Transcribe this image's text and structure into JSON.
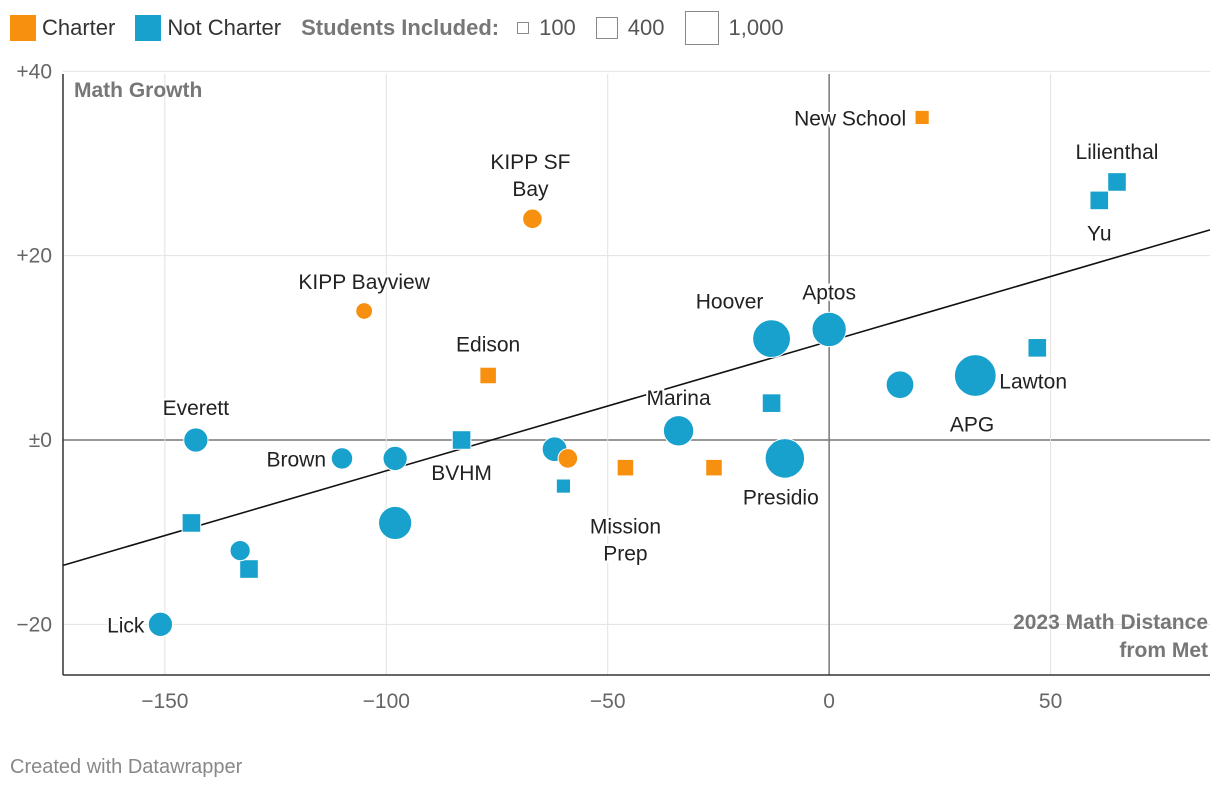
{
  "legend": {
    "charter_label": "Charter",
    "not_charter_label": "Not Charter",
    "size_title": "Students Included:",
    "size_100": "100",
    "size_400": "400",
    "size_1000": "1,000"
  },
  "colors": {
    "charter": "#f7900e",
    "not_charter": "#18a1cd",
    "trend": "#111111",
    "grid": "#e2e2e2",
    "zero": "#777777"
  },
  "footer": {
    "credit": "Created with Datawrapper"
  },
  "chart_data": {
    "type": "scatter",
    "title": "",
    "ylabel": "Math Growth",
    "xlabel": "2023 Math Distance from Met",
    "xlim": [
      -173,
      86
    ],
    "ylim": [
      -25.5,
      40.8
    ],
    "xticks": [
      -150,
      -100,
      -50,
      0,
      50
    ],
    "xtick_labels": [
      "−150",
      "−100",
      "−50",
      "0",
      "50"
    ],
    "yticks": [
      40,
      20,
      0,
      -20
    ],
    "ytick_labels": [
      "+40",
      "+20",
      "±0",
      "−20"
    ],
    "trendline": {
      "x": [
        -173,
        86
      ],
      "y": [
        -13.6,
        22.8
      ]
    },
    "points": [
      {
        "label": "New School",
        "x": 21,
        "y": 35,
        "charter": true,
        "shape": "square",
        "students": 110
      },
      {
        "label": "KIPP SF Bay",
        "x": -67,
        "y": 24,
        "charter": true,
        "shape": "circle",
        "students": 150
      },
      {
        "label": "KIPP Bayview",
        "x": -105,
        "y": 14,
        "charter": true,
        "shape": "circle",
        "students": 110
      },
      {
        "label": "Edison",
        "x": -77,
        "y": 7,
        "charter": true,
        "shape": "square",
        "students": 150
      },
      {
        "label": "",
        "x": -59,
        "y": -2,
        "charter": true,
        "shape": "circle",
        "students": 150
      },
      {
        "label": "Mission Prep",
        "x": -46,
        "y": -3,
        "charter": true,
        "shape": "square",
        "students": 150
      },
      {
        "label": "",
        "x": -26,
        "y": -3,
        "charter": true,
        "shape": "square",
        "students": 150
      },
      {
        "label": "Lilienthal",
        "x": 65,
        "y": 28,
        "charter": false,
        "shape": "square",
        "students": 190
      },
      {
        "label": "Yu",
        "x": 61,
        "y": 26,
        "charter": false,
        "shape": "square",
        "students": 190
      },
      {
        "label": "Aptos",
        "x": 0,
        "y": 12,
        "charter": false,
        "shape": "circle",
        "students": 460
      },
      {
        "label": "Hoover",
        "x": -13,
        "y": 11,
        "charter": false,
        "shape": "circle",
        "students": 560
      },
      {
        "label": "",
        "x": 47,
        "y": 10,
        "charter": false,
        "shape": "square",
        "students": 190
      },
      {
        "label": "Lawton",
        "x": 33,
        "y": 7,
        "charter": false,
        "shape": "circle",
        "students": 680
      },
      {
        "label": "APG",
        "x": 16,
        "y": 6,
        "charter": false,
        "shape": "circle",
        "students": 300
      },
      {
        "label": "",
        "x": -13,
        "y": 4,
        "charter": false,
        "shape": "square",
        "students": 190
      },
      {
        "label": "Marina",
        "x": -34,
        "y": 1,
        "charter": false,
        "shape": "circle",
        "students": 360
      },
      {
        "label": "Presidio",
        "x": -10,
        "y": -2,
        "charter": false,
        "shape": "circle",
        "students": 610
      },
      {
        "label": "",
        "x": -62,
        "y": -1,
        "charter": false,
        "shape": "circle",
        "students": 240
      },
      {
        "label": "",
        "x": -60,
        "y": -5,
        "charter": false,
        "shape": "square",
        "students": 110
      },
      {
        "label": "BVHM",
        "x": -83,
        "y": 0,
        "charter": false,
        "shape": "square",
        "students": 190
      },
      {
        "label": "Everett",
        "x": -143,
        "y": 0,
        "charter": false,
        "shape": "circle",
        "students": 230
      },
      {
        "label": "Brown",
        "x": -110,
        "y": -2,
        "charter": false,
        "shape": "circle",
        "students": 180
      },
      {
        "label": "",
        "x": -98,
        "y": -2,
        "charter": false,
        "shape": "circle",
        "students": 230
      },
      {
        "label": "",
        "x": -98,
        "y": -9,
        "charter": false,
        "shape": "circle",
        "students": 430
      },
      {
        "label": "",
        "x": -144,
        "y": -9,
        "charter": false,
        "shape": "square",
        "students": 190
      },
      {
        "label": "",
        "x": -133,
        "y": -12,
        "charter": false,
        "shape": "circle",
        "students": 160
      },
      {
        "label": "",
        "x": -131,
        "y": -14,
        "charter": false,
        "shape": "square",
        "students": 190
      },
      {
        "label": "Lick",
        "x": -151,
        "y": -20,
        "charter": false,
        "shape": "circle",
        "students": 230
      }
    ]
  }
}
